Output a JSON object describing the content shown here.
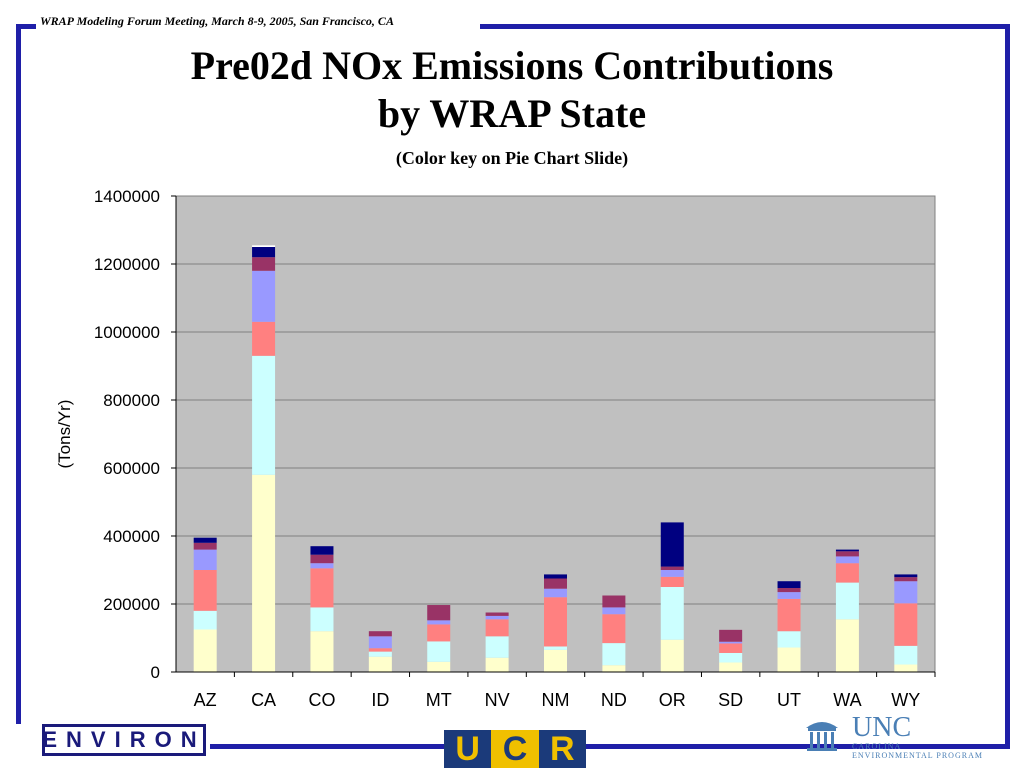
{
  "header": {
    "meeting": "WRAP Modeling Forum Meeting, March 8-9, 2005, San Francisco, CA"
  },
  "slide": {
    "title_line1": "Pre02d NOx Emissions Contributions",
    "title_line2": "by WRAP State",
    "subtitle": "(Color key on Pie Chart Slide)"
  },
  "logos": {
    "environ": "ENVIRON",
    "ucr": [
      "U",
      "C",
      "R"
    ],
    "unc": "UNC",
    "unc_sub1": "CAROLINA",
    "unc_sub2": "ENVIRONMENTAL PROGRAM"
  },
  "colors": {
    "plot_bg": "#c0c0c0",
    "segments": [
      "#ffffcc",
      "#ccffff",
      "#ff8080",
      "#9999ff",
      "#993366",
      "#000080",
      "#ffffff"
    ]
  },
  "chart_data": {
    "type": "bar",
    "stacked": true,
    "categories": [
      "AZ",
      "CA",
      "CO",
      "ID",
      "MT",
      "NV",
      "NM",
      "ND",
      "OR",
      "SD",
      "UT",
      "WA",
      "WY"
    ],
    "ylabel": "(Tons/Yr)",
    "ylim": [
      0,
      1400000
    ],
    "yticks": [
      0,
      200000,
      400000,
      600000,
      800000,
      1000000,
      1200000,
      1400000
    ],
    "ytick_labels": [
      "0",
      "200000",
      "400000",
      "600000",
      "800000",
      "1000000",
      "1200000",
      "1400000"
    ],
    "grid": true,
    "series": [
      {
        "values": [
          125000,
          580000,
          120000,
          45000,
          30000,
          42000,
          65000,
          20000,
          95000,
          28000,
          72000,
          155000,
          22000
        ]
      },
      {
        "values": [
          55000,
          350000,
          70000,
          15000,
          60000,
          63000,
          10000,
          65000,
          155000,
          28000,
          48000,
          108000,
          55000
        ]
      },
      {
        "values": [
          120000,
          100000,
          115000,
          10000,
          50000,
          50000,
          145000,
          85000,
          30000,
          28000,
          95000,
          57000,
          125000
        ]
      },
      {
        "values": [
          60000,
          150000,
          15000,
          35000,
          12000,
          10000,
          25000,
          20000,
          20000,
          5000,
          20000,
          20000,
          65000
        ]
      },
      {
        "values": [
          20000,
          40000,
          25000,
          15000,
          45000,
          10000,
          30000,
          35000,
          10000,
          35000,
          12000,
          15000,
          12000
        ]
      },
      {
        "values": [
          15000,
          30000,
          25000,
          0,
          0,
          0,
          12000,
          0,
          130000,
          0,
          20000,
          5000,
          8000
        ]
      },
      {
        "values": [
          0,
          5000,
          0,
          0,
          0,
          0,
          0,
          0,
          0,
          0,
          0,
          0,
          0
        ]
      }
    ]
  }
}
